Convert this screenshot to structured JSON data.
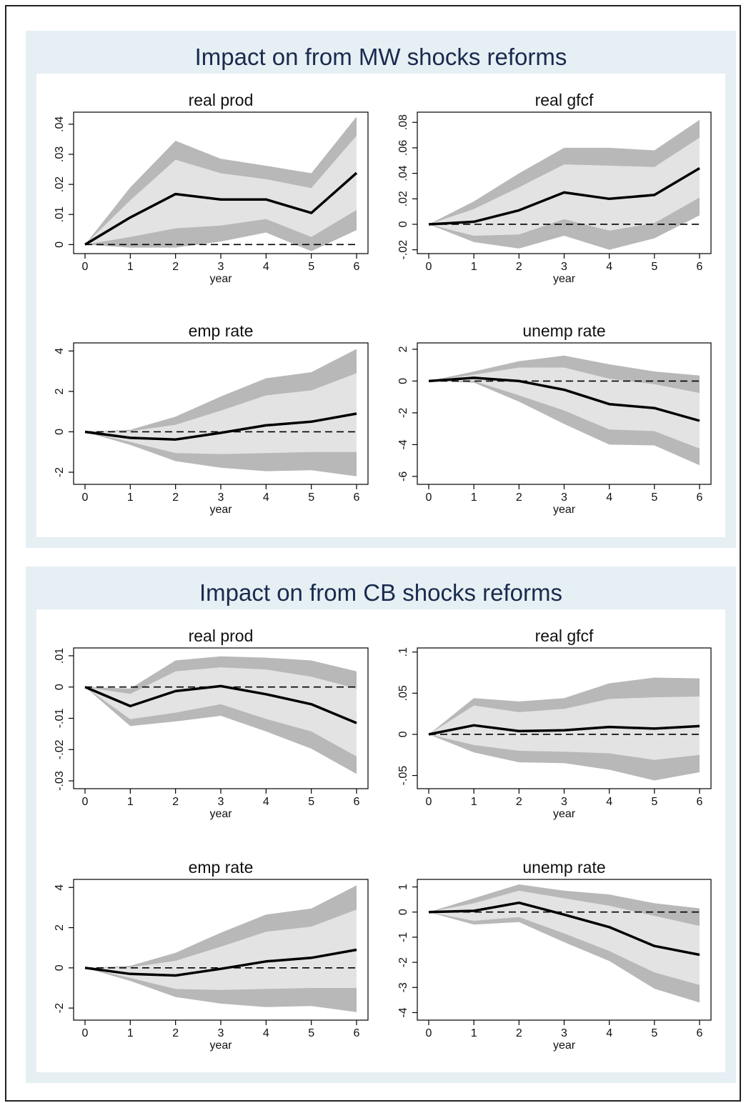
{
  "panels": [
    {
      "title": "Impact on from MW shocks reforms"
    },
    {
      "title": "Impact on from CB shocks reforms"
    }
  ],
  "colors": {
    "outer_band": "#b8b8b8",
    "inner_band": "#e3e3e3",
    "line": "#000000",
    "panel_bg": "#e6eff3",
    "title": "#1a2a4f"
  },
  "chart_data": [
    {
      "type": "line",
      "panel": 0,
      "title": "real prod",
      "xlabel": "year",
      "ylabel": "",
      "x": [
        0,
        1,
        2,
        3,
        4,
        5,
        6
      ],
      "xlim": [
        0,
        6
      ],
      "ylim": [
        -0.003,
        0.044
      ],
      "yticks": [
        0,
        0.01,
        0.02,
        0.03,
        0.04
      ],
      "ytick_labels": [
        "0",
        ".01",
        ".02",
        ".03",
        ".04"
      ],
      "zero_line": true,
      "series": [
        {
          "role": "outer_upper",
          "values": [
            0,
            0.019,
            0.0345,
            0.0285,
            0.0262,
            0.0237,
            0.0425
          ]
        },
        {
          "role": "outer_lower",
          "values": [
            0,
            -0.001,
            -0.001,
            0.001,
            0.004,
            -0.0022,
            0.0048
          ]
        },
        {
          "role": "inner_upper",
          "values": [
            0,
            0.0147,
            0.0282,
            0.0237,
            0.0217,
            0.0188,
            0.0362
          ]
        },
        {
          "role": "inner_lower",
          "values": [
            0,
            0.0025,
            0.0054,
            0.0063,
            0.0085,
            0.0025,
            0.0115
          ]
        },
        {
          "role": "point_estimate",
          "values": [
            0,
            0.009,
            0.0168,
            0.015,
            0.015,
            0.0105,
            0.0238
          ]
        }
      ]
    },
    {
      "type": "line",
      "panel": 0,
      "title": "real gfcf",
      "xlabel": "year",
      "ylabel": "",
      "x": [
        0,
        1,
        2,
        3,
        4,
        5,
        6
      ],
      "xlim": [
        0,
        6
      ],
      "ylim": [
        -0.023,
        0.088
      ],
      "yticks": [
        -0.02,
        0,
        0.02,
        0.04,
        0.06,
        0.08
      ],
      "ytick_labels": [
        "-.02",
        "0",
        ".02",
        ".04",
        ".06",
        ".08"
      ],
      "zero_line": true,
      "series": [
        {
          "role": "outer_upper",
          "values": [
            0,
            0.018,
            0.04,
            0.06,
            0.06,
            0.058,
            0.082
          ]
        },
        {
          "role": "outer_lower",
          "values": [
            0,
            -0.014,
            -0.019,
            -0.009,
            -0.02,
            -0.011,
            0.007
          ]
        },
        {
          "role": "inner_upper",
          "values": [
            0,
            0.012,
            0.029,
            0.047,
            0.046,
            0.045,
            0.068
          ]
        },
        {
          "role": "inner_lower",
          "values": [
            0,
            -0.009,
            -0.008,
            0.004,
            -0.005,
            0.001,
            0.021
          ]
        },
        {
          "role": "point_estimate",
          "values": [
            0,
            0.002,
            0.011,
            0.025,
            0.02,
            0.023,
            0.044
          ]
        }
      ]
    },
    {
      "type": "line",
      "panel": 0,
      "title": "emp rate",
      "xlabel": "year",
      "ylabel": "",
      "x": [
        0,
        1,
        2,
        3,
        4,
        5,
        6
      ],
      "xlim": [
        0,
        6
      ],
      "ylim": [
        -2.6,
        4.4
      ],
      "yticks": [
        -2,
        0,
        2,
        4
      ],
      "ytick_labels": [
        "-2",
        "0",
        "2",
        "4"
      ],
      "zero_line": true,
      "series": [
        {
          "role": "outer_upper",
          "values": [
            0,
            0.1,
            0.75,
            1.75,
            2.65,
            2.95,
            4.1
          ]
        },
        {
          "role": "outer_lower",
          "values": [
            0,
            -0.65,
            -1.45,
            -1.78,
            -1.95,
            -1.9,
            -2.2
          ]
        },
        {
          "role": "inner_upper",
          "values": [
            0,
            0.03,
            0.35,
            1.05,
            1.8,
            2.05,
            2.9
          ]
        },
        {
          "role": "inner_lower",
          "values": [
            0,
            -0.5,
            -1.05,
            -1.1,
            -1.05,
            -1.0,
            -1.0
          ]
        },
        {
          "role": "point_estimate",
          "values": [
            0,
            -0.3,
            -0.38,
            -0.05,
            0.32,
            0.5,
            0.9
          ]
        }
      ]
    },
    {
      "type": "line",
      "panel": 0,
      "title": "unemp rate",
      "xlabel": "year",
      "ylabel": "",
      "x": [
        0,
        1,
        2,
        3,
        4,
        5,
        6
      ],
      "xlim": [
        0,
        6
      ],
      "ylim": [
        -6.5,
        2.4
      ],
      "yticks": [
        -6,
        -4,
        -2,
        0,
        2
      ],
      "ytick_labels": [
        "-6",
        "-4",
        "-2",
        "0",
        "2"
      ],
      "zero_line": true,
      "series": [
        {
          "role": "outer_upper",
          "values": [
            0,
            0.6,
            1.25,
            1.6,
            1.05,
            0.6,
            0.35
          ]
        },
        {
          "role": "outer_lower",
          "values": [
            0,
            -0.1,
            -1.3,
            -2.7,
            -4.0,
            -4.05,
            -5.3
          ]
        },
        {
          "role": "inner_upper",
          "values": [
            0,
            0.4,
            0.85,
            0.85,
            0.15,
            -0.2,
            -0.75
          ]
        },
        {
          "role": "inner_lower",
          "values": [
            0,
            0.0,
            -0.9,
            -1.85,
            -3.05,
            -3.15,
            -4.25
          ]
        },
        {
          "role": "point_estimate",
          "values": [
            0,
            0.2,
            0.0,
            -0.55,
            -1.45,
            -1.7,
            -2.5
          ]
        }
      ]
    },
    {
      "type": "line",
      "panel": 1,
      "title": "real prod",
      "xlabel": "year",
      "ylabel": "",
      "x": [
        0,
        1,
        2,
        3,
        4,
        5,
        6
      ],
      "xlim": [
        0,
        6
      ],
      "ylim": [
        -0.0325,
        0.0125
      ],
      "yticks": [
        -0.03,
        -0.02,
        -0.01,
        0,
        0.01
      ],
      "ytick_labels": [
        "-.03",
        "-.02",
        "-.01",
        "0",
        ".01"
      ],
      "zero_line": true,
      "series": [
        {
          "role": "outer_upper",
          "values": [
            0,
            -0.0005,
            0.0085,
            0.0098,
            0.0094,
            0.0085,
            0.005
          ]
        },
        {
          "role": "outer_lower",
          "values": [
            0,
            -0.0125,
            -0.011,
            -0.0092,
            -0.0142,
            -0.0197,
            -0.0278
          ]
        },
        {
          "role": "inner_upper",
          "values": [
            0,
            -0.0022,
            0.005,
            0.0063,
            0.0056,
            0.0033,
            -0.0005
          ]
        },
        {
          "role": "inner_lower",
          "values": [
            0,
            -0.0103,
            -0.0082,
            -0.0055,
            -0.0102,
            -0.0142,
            -0.0222
          ]
        },
        {
          "role": "point_estimate",
          "values": [
            0,
            -0.0061,
            -0.0013,
            0.0003,
            -0.0023,
            -0.0055,
            -0.0115
          ]
        }
      ]
    },
    {
      "type": "line",
      "panel": 1,
      "title": "real gfcf",
      "xlabel": "year",
      "ylabel": "",
      "x": [
        0,
        1,
        2,
        3,
        4,
        5,
        6
      ],
      "xlim": [
        0,
        6
      ],
      "ylim": [
        -0.066,
        0.105
      ],
      "yticks": [
        -0.05,
        0,
        0.05,
        0.1
      ],
      "ytick_labels": [
        "-.05",
        "0",
        ".05",
        ".1"
      ],
      "zero_line": true,
      "series": [
        {
          "role": "outer_upper",
          "values": [
            0,
            0.044,
            0.04,
            0.044,
            0.062,
            0.069,
            0.068
          ]
        },
        {
          "role": "outer_lower",
          "values": [
            0,
            -0.022,
            -0.034,
            -0.035,
            -0.043,
            -0.056,
            -0.046
          ]
        },
        {
          "role": "inner_upper",
          "values": [
            0,
            0.035,
            0.027,
            0.031,
            0.043,
            0.045,
            0.046
          ]
        },
        {
          "role": "inner_lower",
          "values": [
            0,
            -0.013,
            -0.02,
            -0.021,
            -0.023,
            -0.031,
            -0.025
          ]
        },
        {
          "role": "point_estimate",
          "values": [
            0,
            0.011,
            0.004,
            0.005,
            0.009,
            0.007,
            0.01
          ]
        }
      ]
    },
    {
      "type": "line",
      "panel": 1,
      "title": "emp rate",
      "xlabel": "year",
      "ylabel": "",
      "x": [
        0,
        1,
        2,
        3,
        4,
        5,
        6
      ],
      "xlim": [
        0,
        6
      ],
      "ylim": [
        -2.6,
        4.4
      ],
      "yticks": [
        -2,
        0,
        2,
        4
      ],
      "ytick_labels": [
        "-2",
        "0",
        "2",
        "4"
      ],
      "zero_line": true,
      "series": [
        {
          "role": "outer_upper",
          "values": [
            0,
            0.1,
            0.75,
            1.75,
            2.65,
            2.95,
            4.1
          ]
        },
        {
          "role": "outer_lower",
          "values": [
            0,
            -0.65,
            -1.45,
            -1.78,
            -1.95,
            -1.9,
            -2.2
          ]
        },
        {
          "role": "inner_upper",
          "values": [
            0,
            0.03,
            0.35,
            1.05,
            1.8,
            2.05,
            2.9
          ]
        },
        {
          "role": "inner_lower",
          "values": [
            0,
            -0.5,
            -1.05,
            -1.1,
            -1.05,
            -1.0,
            -1.0
          ]
        },
        {
          "role": "point_estimate",
          "values": [
            0,
            -0.3,
            -0.38,
            -0.05,
            0.32,
            0.5,
            0.9
          ]
        }
      ]
    },
    {
      "type": "line",
      "panel": 1,
      "title": "unemp rate",
      "xlabel": "year",
      "ylabel": "",
      "x": [
        0,
        1,
        2,
        3,
        4,
        5,
        6
      ],
      "xlim": [
        0,
        6
      ],
      "ylim": [
        -4.3,
        1.3
      ],
      "yticks": [
        -4,
        -3,
        -2,
        -1,
        0,
        1
      ],
      "ytick_labels": [
        "-4",
        "-3",
        "-2",
        "-1",
        "0",
        "1"
      ],
      "zero_line": true,
      "series": [
        {
          "role": "outer_upper",
          "values": [
            0,
            0.55,
            1.1,
            0.85,
            0.7,
            0.35,
            0.15
          ]
        },
        {
          "role": "outer_lower",
          "values": [
            0,
            -0.5,
            -0.4,
            -1.2,
            -1.95,
            -3.05,
            -3.6
          ]
        },
        {
          "role": "inner_upper",
          "values": [
            0,
            0.35,
            0.85,
            0.55,
            0.25,
            -0.15,
            -0.55
          ]
        },
        {
          "role": "inner_lower",
          "values": [
            0,
            -0.35,
            -0.2,
            -0.85,
            -1.55,
            -2.4,
            -2.9
          ]
        },
        {
          "role": "point_estimate",
          "values": [
            0,
            0.05,
            0.37,
            -0.1,
            -0.6,
            -1.35,
            -1.7
          ]
        }
      ]
    }
  ]
}
